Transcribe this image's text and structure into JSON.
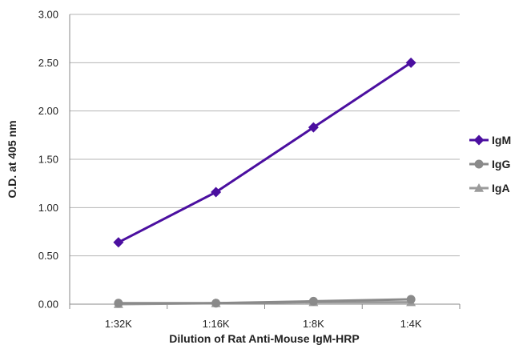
{
  "chart_data": {
    "type": "line",
    "title": "",
    "xlabel": "Dilution of Rat Anti-Mouse IgM-HRP",
    "ylabel": "O.D. at 405 nm",
    "categories": [
      "1:32K",
      "1:16K",
      "1:8K",
      "1:4K"
    ],
    "ylim": [
      0,
      3
    ],
    "yticks": [
      "0.00",
      "0.50",
      "1.00",
      "1.50",
      "2.00",
      "2.50",
      "3.00"
    ],
    "grid": true,
    "legend": "right",
    "series": [
      {
        "name": "IgM",
        "marker": "diamond",
        "color": "#4b0fa0",
        "values": [
          0.64,
          1.16,
          1.83,
          2.5
        ]
      },
      {
        "name": "IgG",
        "marker": "circle",
        "color": "#8a8a8a",
        "values": [
          0.01,
          0.01,
          0.03,
          0.05
        ]
      },
      {
        "name": "IgA",
        "marker": "triangle",
        "color": "#9b9b9b",
        "values": [
          0.0,
          0.01,
          0.02,
          0.02
        ]
      }
    ]
  }
}
